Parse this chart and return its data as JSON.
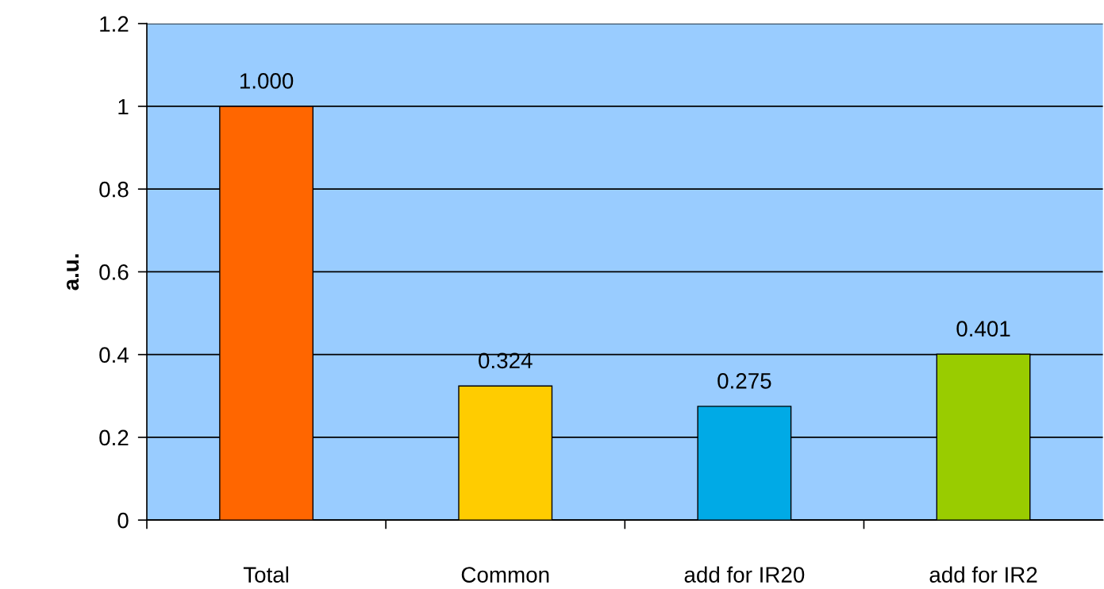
{
  "chart_data": {
    "type": "bar",
    "ylabel": "a.u.",
    "categories": [
      "Total",
      "Common",
      "add for IR20",
      "add for IR2"
    ],
    "values": [
      1.0,
      0.324,
      0.275,
      0.401
    ],
    "colors": [
      "#ff6600",
      "#ffcc00",
      "#00aae6",
      "#99cc00"
    ],
    "value_labels": [
      "1.000",
      "0.324",
      "0.275",
      "0.401"
    ],
    "ylim": [
      0,
      1.2
    ],
    "yticks": [
      0,
      0.2,
      0.4,
      0.6,
      0.8,
      1,
      1.2
    ],
    "grid": "y"
  }
}
